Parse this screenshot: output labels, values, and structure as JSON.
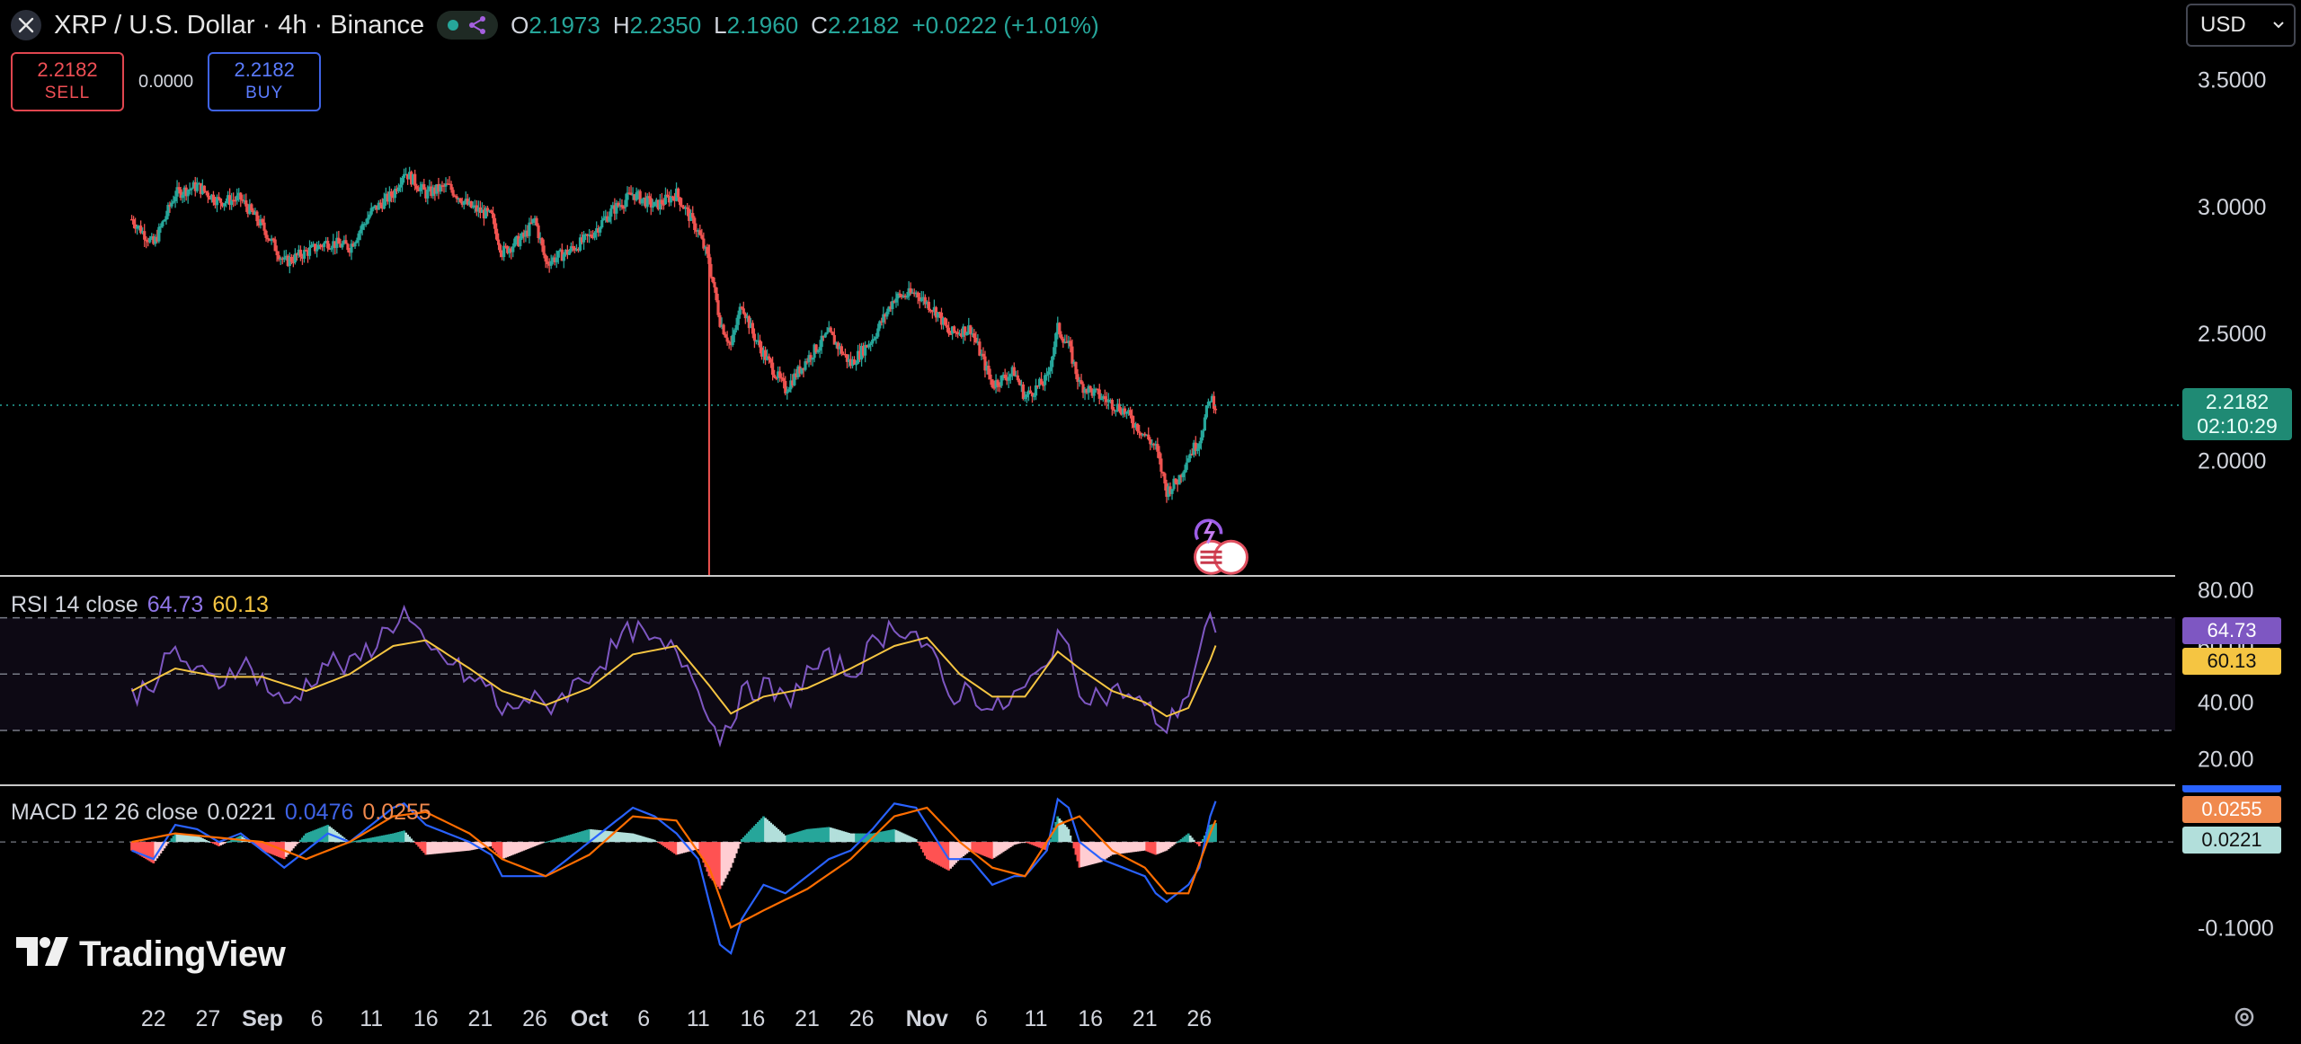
{
  "header": {
    "symbol_title": "XRP / U.S. Dollar · 4h · Binance",
    "ohlc": [
      {
        "key": "O",
        "value": "2.1973"
      },
      {
        "key": "H",
        "value": "2.2350"
      },
      {
        "key": "L",
        "value": "2.1960"
      },
      {
        "key": "C",
        "value": "2.2182"
      }
    ],
    "change": "+0.0222 (+1.01%)",
    "icons": [
      "close-icon",
      "status-dot",
      "share-icon"
    ]
  },
  "trade": {
    "sell_price": "2.2182",
    "sell_label": "SELL",
    "spread": "0.0000",
    "buy_price": "2.2182",
    "buy_label": "BUY"
  },
  "currency": {
    "selected": "USD",
    "icon": "chevron-down-icon"
  },
  "current_price": {
    "price": "2.2182",
    "countdown": "02:10:29"
  },
  "indicators": {
    "rsi": {
      "label": "RSI 14 close",
      "value": "64.73",
      "ma": "60.13"
    },
    "macd": {
      "label": "MACD 12 26 close",
      "hist": "0.0221",
      "macd": "0.0476",
      "signal": "0.0255"
    }
  },
  "branding": {
    "name": "TradingView",
    "icon": "tradingview-logo-icon"
  },
  "colors": {
    "up": "#26a69a",
    "down": "#ef5350",
    "rsi": "#7e57c2",
    "rsi_ma": "#f5c542",
    "macd": "#2962ff",
    "signal": "#ff6d00",
    "sell": "#f04f55",
    "buy": "#5b7cff"
  },
  "chart_data": {
    "type": "candlestick",
    "interval": "4h",
    "grid": false,
    "x_ticks": [
      "22",
      "27",
      "Sep",
      "6",
      "11",
      "16",
      "21",
      "26",
      "Oct",
      "6",
      "11",
      "16",
      "21",
      "26",
      "Nov",
      "6",
      "11",
      "16",
      "21",
      "26"
    ],
    "x_tick_days": [
      -10,
      -5,
      0,
      5,
      10,
      15,
      20,
      25,
      30,
      35,
      40,
      45,
      50,
      55,
      61,
      66,
      71,
      76,
      81,
      86
    ],
    "price": {
      "yticks": [
        "3.5000",
        "3.0000",
        "2.5000",
        "2.0000"
      ],
      "ylim": [
        1.55,
        3.6
      ],
      "path": [
        [
          -12,
          2.95
        ],
        [
          -10,
          2.85
        ],
        [
          -8,
          3.05
        ],
        [
          -6,
          3.08
        ],
        [
          -4,
          3.02
        ],
        [
          -2,
          3.03
        ],
        [
          0,
          2.92
        ],
        [
          2,
          2.78
        ],
        [
          4,
          2.82
        ],
        [
          6,
          2.86
        ],
        [
          8,
          2.84
        ],
        [
          10,
          2.98
        ],
        [
          12,
          3.05
        ],
        [
          13,
          3.14
        ],
        [
          15,
          3.05
        ],
        [
          17,
          3.08
        ],
        [
          19,
          3.0
        ],
        [
          21,
          2.96
        ],
        [
          22,
          2.82
        ],
        [
          24,
          2.88
        ],
        [
          25,
          2.95
        ],
        [
          26,
          2.78
        ],
        [
          28,
          2.82
        ],
        [
          30,
          2.88
        ],
        [
          32,
          2.98
        ],
        [
          34,
          3.05
        ],
        [
          36,
          3.0
        ],
        [
          38,
          3.05
        ],
        [
          40,
          2.9
        ],
        [
          41,
          2.78
        ],
        [
          42,
          2.55
        ],
        [
          43,
          2.45
        ],
        [
          44,
          2.62
        ],
        [
          45,
          2.5
        ],
        [
          46,
          2.42
        ],
        [
          48,
          2.28
        ],
        [
          50,
          2.4
        ],
        [
          52,
          2.5
        ],
        [
          54,
          2.38
        ],
        [
          56,
          2.48
        ],
        [
          58,
          2.64
        ],
        [
          60,
          2.66
        ],
        [
          62,
          2.58
        ],
        [
          63,
          2.5
        ],
        [
          65,
          2.52
        ],
        [
          67,
          2.3
        ],
        [
          69,
          2.35
        ],
        [
          70,
          2.25
        ],
        [
          72,
          2.32
        ],
        [
          73,
          2.52
        ],
        [
          74,
          2.45
        ],
        [
          75,
          2.3
        ],
        [
          77,
          2.25
        ],
        [
          79,
          2.2
        ],
        [
          81,
          2.1
        ],
        [
          82,
          2.05
        ],
        [
          83,
          1.88
        ],
        [
          84,
          1.92
        ],
        [
          85,
          2.02
        ],
        [
          86,
          2.08
        ],
        [
          87,
          2.25
        ],
        [
          87.5,
          2.218
        ]
      ],
      "spike_low": {
        "day": 41,
        "price": 1.55
      }
    },
    "rsi": {
      "yticks": [
        "80.00",
        "60.00",
        "40.00",
        "20.00"
      ],
      "ylim": [
        15,
        82
      ],
      "band": [
        30,
        70
      ],
      "mid": 50,
      "series": [
        [
          -12,
          42
        ],
        [
          -10,
          48
        ],
        [
          -8,
          58
        ],
        [
          -6,
          50
        ],
        [
          -4,
          47
        ],
        [
          -2,
          55
        ],
        [
          0,
          48
        ],
        [
          2,
          38
        ],
        [
          4,
          46
        ],
        [
          6,
          55
        ],
        [
          8,
          52
        ],
        [
          10,
          60
        ],
        [
          12,
          68
        ],
        [
          13,
          72
        ],
        [
          15,
          58
        ],
        [
          17,
          55
        ],
        [
          19,
          48
        ],
        [
          21,
          45
        ],
        [
          22,
          35
        ],
        [
          24,
          42
        ],
        [
          26,
          38
        ],
        [
          28,
          44
        ],
        [
          30,
          50
        ],
        [
          32,
          58
        ],
        [
          34,
          66
        ],
        [
          36,
          60
        ],
        [
          38,
          58
        ],
        [
          40,
          48
        ],
        [
          41,
          34
        ],
        [
          42,
          28
        ],
        [
          44,
          42
        ],
        [
          46,
          46
        ],
        [
          48,
          40
        ],
        [
          50,
          50
        ],
        [
          52,
          55
        ],
        [
          54,
          50
        ],
        [
          56,
          60
        ],
        [
          58,
          68
        ],
        [
          60,
          64
        ],
        [
          62,
          52
        ],
        [
          63,
          42
        ],
        [
          65,
          45
        ],
        [
          67,
          36
        ],
        [
          69,
          42
        ],
        [
          70,
          45
        ],
        [
          72,
          52
        ],
        [
          73,
          68
        ],
        [
          74,
          56
        ],
        [
          75,
          45
        ],
        [
          77,
          42
        ],
        [
          79,
          44
        ],
        [
          81,
          38
        ],
        [
          82,
          35
        ],
        [
          83,
          30
        ],
        [
          84,
          38
        ],
        [
          85,
          44
        ],
        [
          86,
          58
        ],
        [
          87,
          70
        ],
        [
          87.5,
          64.73
        ]
      ],
      "ma": [
        [
          -12,
          44
        ],
        [
          -8,
          52
        ],
        [
          -4,
          49
        ],
        [
          0,
          49
        ],
        [
          4,
          44
        ],
        [
          8,
          50
        ],
        [
          12,
          60
        ],
        [
          15,
          62
        ],
        [
          19,
          52
        ],
        [
          22,
          44
        ],
        [
          26,
          39
        ],
        [
          30,
          45
        ],
        [
          34,
          57
        ],
        [
          38,
          60
        ],
        [
          41,
          46
        ],
        [
          43,
          36
        ],
        [
          46,
          42
        ],
        [
          50,
          45
        ],
        [
          54,
          52
        ],
        [
          58,
          60
        ],
        [
          61,
          63
        ],
        [
          64,
          50
        ],
        [
          67,
          42
        ],
        [
          70,
          42
        ],
        [
          73,
          58
        ],
        [
          75,
          52
        ],
        [
          78,
          44
        ],
        [
          81,
          40
        ],
        [
          83,
          35
        ],
        [
          85,
          38
        ],
        [
          87,
          55
        ],
        [
          87.5,
          60.13
        ]
      ]
    },
    "macd": {
      "yticks": [
        "0.0000",
        "-0.1000"
      ],
      "ylim": [
        -0.15,
        0.06
      ],
      "macd_line": [
        [
          -12,
          -0.01
        ],
        [
          -10,
          -0.02
        ],
        [
          -8,
          0.02
        ],
        [
          -6,
          0.015
        ],
        [
          -4,
          0.0
        ],
        [
          -2,
          0.01
        ],
        [
          0,
          -0.01
        ],
        [
          2,
          -0.03
        ],
        [
          4,
          -0.01
        ],
        [
          6,
          0.01
        ],
        [
          8,
          0.0
        ],
        [
          10,
          0.02
        ],
        [
          12,
          0.04
        ],
        [
          13,
          0.045
        ],
        [
          15,
          0.02
        ],
        [
          17,
          0.01
        ],
        [
          19,
          0.0
        ],
        [
          21,
          -0.015
        ],
        [
          22,
          -0.04
        ],
        [
          24,
          -0.04
        ],
        [
          26,
          -0.04
        ],
        [
          28,
          -0.02
        ],
        [
          30,
          0.0
        ],
        [
          32,
          0.02
        ],
        [
          34,
          0.04
        ],
        [
          36,
          0.03
        ],
        [
          38,
          0.01
        ],
        [
          40,
          -0.02
        ],
        [
          41,
          -0.07
        ],
        [
          42,
          -0.12
        ],
        [
          43,
          -0.13
        ],
        [
          44,
          -0.09
        ],
        [
          46,
          -0.05
        ],
        [
          48,
          -0.06
        ],
        [
          50,
          -0.04
        ],
        [
          52,
          -0.02
        ],
        [
          54,
          -0.01
        ],
        [
          56,
          0.015
        ],
        [
          58,
          0.045
        ],
        [
          60,
          0.04
        ],
        [
          62,
          0.0
        ],
        [
          63,
          -0.02
        ],
        [
          65,
          -0.02
        ],
        [
          67,
          -0.05
        ],
        [
          69,
          -0.04
        ],
        [
          70,
          -0.04
        ],
        [
          72,
          -0.01
        ],
        [
          73,
          0.05
        ],
        [
          74,
          0.04
        ],
        [
          75,
          0.0
        ],
        [
          77,
          -0.02
        ],
        [
          79,
          -0.03
        ],
        [
          81,
          -0.04
        ],
        [
          82,
          -0.06
        ],
        [
          83,
          -0.07
        ],
        [
          84,
          -0.06
        ],
        [
          85,
          -0.05
        ],
        [
          86,
          -0.03
        ],
        [
          87,
          0.03
        ],
        [
          87.5,
          0.0476
        ]
      ],
      "signal_line": [
        [
          -12,
          0.0
        ],
        [
          -8,
          0.01
        ],
        [
          -4,
          0.005
        ],
        [
          0,
          0.0
        ],
        [
          4,
          -0.02
        ],
        [
          8,
          0.0
        ],
        [
          12,
          0.03
        ],
        [
          15,
          0.035
        ],
        [
          19,
          0.01
        ],
        [
          22,
          -0.02
        ],
        [
          26,
          -0.04
        ],
        [
          30,
          -0.015
        ],
        [
          34,
          0.03
        ],
        [
          38,
          0.025
        ],
        [
          41,
          -0.03
        ],
        [
          43,
          -0.1
        ],
        [
          46,
          -0.08
        ],
        [
          50,
          -0.055
        ],
        [
          54,
          -0.02
        ],
        [
          58,
          0.03
        ],
        [
          61,
          0.04
        ],
        [
          64,
          0.0
        ],
        [
          67,
          -0.03
        ],
        [
          70,
          -0.04
        ],
        [
          73,
          0.02
        ],
        [
          75,
          0.03
        ],
        [
          78,
          -0.01
        ],
        [
          81,
          -0.03
        ],
        [
          83,
          -0.06
        ],
        [
          85,
          -0.06
        ],
        [
          87,
          0.01
        ],
        [
          87.5,
          0.0255
        ]
      ],
      "hist_last": 0.0221
    }
  }
}
